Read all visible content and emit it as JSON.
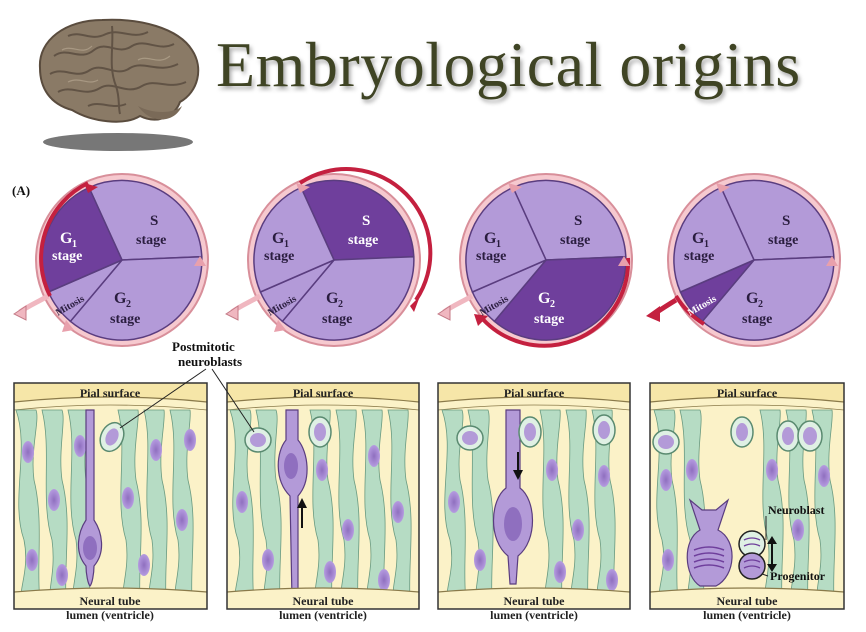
{
  "title": "Embryological origins",
  "panel_label": "(A)",
  "cycle": {
    "g1": "G",
    "g1_sub": "1",
    "stage": "stage",
    "s": "S",
    "g2": "G",
    "g2_sub": "2",
    "mitosis": "Mitosis"
  },
  "annotations": {
    "postmitotic_line1": "Postmitotic",
    "postmitotic_line2": "neuroblasts",
    "neuroblast": "Neuroblast",
    "progenitor": "Progenitor"
  },
  "tissue": {
    "pial_surface": "Pial surface",
    "lumen_line1": "Neural tube",
    "lumen_line2": "lumen (ventricle)"
  },
  "highlighted_phases": [
    "G1",
    "S",
    "G2",
    "Mitosis"
  ],
  "colors": {
    "title": "#3f4424",
    "phase_light": "#b39ad8",
    "phase_dark": "#6f3f9c",
    "arrow_ring": "#f0b7c0",
    "arrow_active": "#c4203f",
    "tissue_bg": "#fbf2c8",
    "cell_green": "#b6dcc4",
    "nucleus": "#a88ad0"
  }
}
